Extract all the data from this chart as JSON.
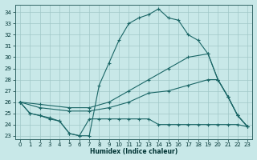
{
  "bg_color": "#c8e8e8",
  "grid_color": "#a0c8c8",
  "line_color": "#1a6666",
  "xlim": [
    -0.5,
    23.5
  ],
  "ylim": [
    22.7,
    34.7
  ],
  "yticks": [
    23,
    24,
    25,
    26,
    27,
    28,
    29,
    30,
    31,
    32,
    33,
    34
  ],
  "xticks": [
    0,
    1,
    2,
    3,
    4,
    5,
    6,
    7,
    8,
    9,
    10,
    11,
    12,
    13,
    14,
    15,
    16,
    17,
    18,
    19,
    20,
    21,
    22,
    23
  ],
  "xlabel": "Humidex (Indice chaleur)",
  "lines": [
    {
      "x": [
        0,
        1,
        2,
        3,
        4,
        5,
        6,
        7,
        8,
        9,
        10,
        11,
        12,
        13,
        14,
        15,
        16,
        17,
        18,
        19,
        20,
        21,
        22,
        23
      ],
      "y": [
        26,
        25,
        24.8,
        24.6,
        24.3,
        23.2,
        23.0,
        23.0,
        27.5,
        29.5,
        31.5,
        33.0,
        33.5,
        33.8,
        34.3,
        33.5,
        33.3,
        32.0,
        31.5,
        30.3,
        28.0,
        26.5,
        24.8,
        23.8
      ]
    },
    {
      "x": [
        0,
        2,
        5,
        7,
        9,
        11,
        13,
        15,
        17,
        19,
        20,
        21,
        22,
        23
      ],
      "y": [
        26,
        25.8,
        25.5,
        25.5,
        26.0,
        27.0,
        28.0,
        29.0,
        30.0,
        30.3,
        28.0,
        26.5,
        24.8,
        23.8
      ]
    },
    {
      "x": [
        0,
        2,
        5,
        7,
        9,
        11,
        13,
        15,
        17,
        19,
        20,
        21,
        22,
        23
      ],
      "y": [
        26,
        25.5,
        25.2,
        25.2,
        25.5,
        26.0,
        26.8,
        27.0,
        27.5,
        28.0,
        28.0,
        26.5,
        24.8,
        23.8
      ]
    },
    {
      "x": [
        0,
        1,
        2,
        3,
        4,
        5,
        6,
        7,
        8,
        9,
        10,
        11,
        12,
        13,
        14,
        15,
        16,
        17,
        18,
        19,
        20,
        21,
        22,
        23
      ],
      "y": [
        26,
        25,
        24.8,
        24.5,
        24.3,
        23.2,
        23.0,
        24.5,
        24.5,
        24.5,
        24.5,
        24.5,
        24.5,
        24.5,
        24.0,
        24.0,
        24.0,
        24.0,
        24.0,
        24.0,
        24.0,
        24.0,
        24.0,
        23.8
      ]
    }
  ]
}
